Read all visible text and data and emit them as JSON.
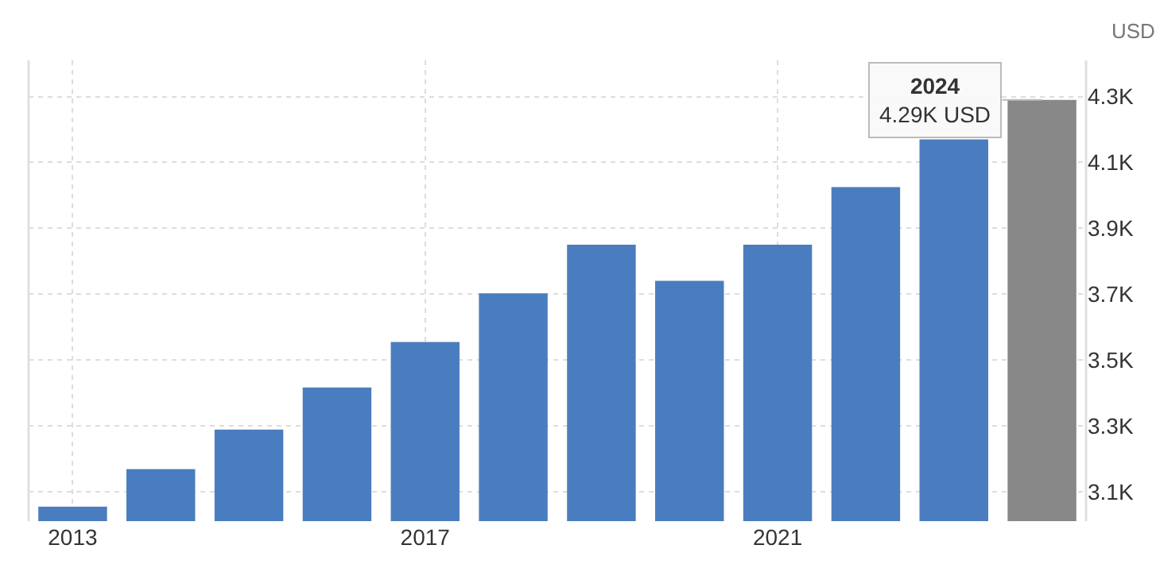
{
  "chart_data": {
    "type": "bar",
    "ylabel": "USD",
    "x": [
      2013,
      2014,
      2015,
      2016,
      2017,
      2018,
      2019,
      2020,
      2021,
      2022,
      2023,
      2024
    ],
    "values": [
      3.054,
      3.168,
      3.288,
      3.416,
      3.554,
      3.702,
      3.85,
      3.74,
      3.85,
      4.025,
      4.17,
      4.29
    ],
    "colors": [
      "#4a7dbf",
      "#4a7dbf",
      "#4a7dbf",
      "#4a7dbf",
      "#4a7dbf",
      "#4a7dbf",
      "#4a7dbf",
      "#4a7dbf",
      "#4a7dbf",
      "#4a7dbf",
      "#4a7dbf",
      "#888888"
    ],
    "xlim": [
      2012.5,
      2024.5
    ],
    "xticks": [
      2013,
      2017,
      2021
    ],
    "ylim": [
      3.01,
      4.41
    ],
    "yticks": [
      {
        "value": 3.1,
        "label": "3.1K"
      },
      {
        "value": 3.3,
        "label": "3.3K"
      },
      {
        "value": 3.5,
        "label": "3.5K"
      },
      {
        "value": 3.7,
        "label": "3.7K"
      },
      {
        "value": 3.9,
        "label": "3.9K"
      },
      {
        "value": 4.1,
        "label": "4.1K"
      },
      {
        "value": 4.3,
        "label": "4.3K"
      }
    ],
    "grid": true,
    "annotations": [
      {
        "text": "2024\n4.29K USD",
        "x": 2024,
        "y": 4.29
      }
    ]
  }
}
